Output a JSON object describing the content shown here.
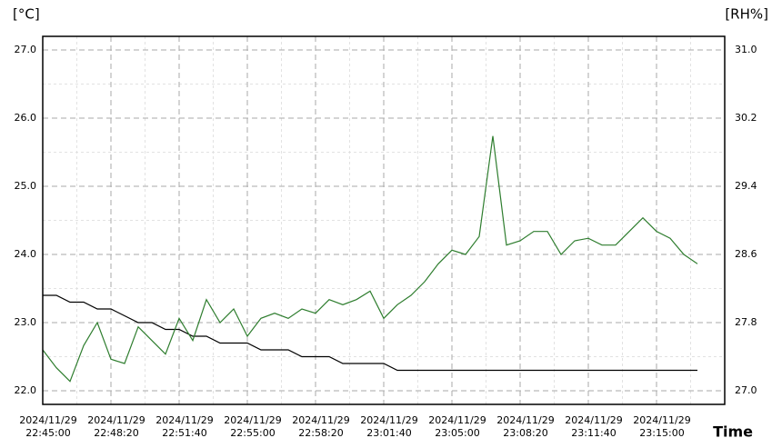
{
  "chart_data": {
    "type": "line",
    "y_label": "[°C]",
    "y2_label": "[RH%]",
    "x_label": "Time",
    "x": [
      "2024/11/29 22:45:00",
      "2024/11/29 22:45:40",
      "2024/11/29 22:46:20",
      "2024/11/29 22:47:00",
      "2024/11/29 22:47:40",
      "2024/11/29 22:48:20",
      "2024/11/29 22:49:00",
      "2024/11/29 22:49:40",
      "2024/11/29 22:50:20",
      "2024/11/29 22:51:00",
      "2024/11/29 22:51:40",
      "2024/11/29 22:52:20",
      "2024/11/29 22:53:00",
      "2024/11/29 22:53:40",
      "2024/11/29 22:54:20",
      "2024/11/29 22:55:00",
      "2024/11/29 22:55:40",
      "2024/11/29 22:56:20",
      "2024/11/29 22:57:00",
      "2024/11/29 22:57:40",
      "2024/11/29 22:58:20",
      "2024/11/29 22:59:00",
      "2024/11/29 22:59:40",
      "2024/11/29 23:00:20",
      "2024/11/29 23:01:00",
      "2024/11/29 23:01:40",
      "2024/11/29 23:02:20",
      "2024/11/29 23:03:00",
      "2024/11/29 23:03:40",
      "2024/11/29 23:04:20",
      "2024/11/29 23:05:00",
      "2024/11/29 23:05:40",
      "2024/11/29 23:06:20",
      "2024/11/29 23:07:00",
      "2024/11/29 23:07:40",
      "2024/11/29 23:08:20",
      "2024/11/29 23:09:00",
      "2024/11/29 23:09:40",
      "2024/11/29 23:10:20",
      "2024/11/29 23:11:00",
      "2024/11/29 23:11:40",
      "2024/11/29 23:12:20",
      "2024/11/29 23:13:00",
      "2024/11/29 23:13:40",
      "2024/11/29 23:14:20",
      "2024/11/29 23:15:00",
      "2024/11/29 23:15:40",
      "2024/11/29 23:16:20",
      "2024/11/29 23:17:00"
    ],
    "series": [
      {
        "color": "#000000",
        "values": [
          23.4,
          23.4,
          23.3,
          23.3,
          23.2,
          23.2,
          23.1,
          23.0,
          23.0,
          22.9,
          22.9,
          22.8,
          22.8,
          22.7,
          22.7,
          22.7,
          22.6,
          22.6,
          22.6,
          22.5,
          22.5,
          22.5,
          22.4,
          22.4,
          22.4,
          22.4,
          22.3,
          22.3,
          22.3,
          22.3,
          22.3,
          22.3,
          22.3,
          22.3,
          22.3,
          22.3,
          22.3,
          22.3,
          22.3,
          22.3,
          22.3,
          22.3,
          22.3,
          22.3,
          22.3,
          22.3,
          22.3,
          22.3,
          22.3
        ]
      },
      {
        "color": "#2e7d2e",
        "axis": "y2",
        "values": [
          27.48,
          27.27,
          27.11,
          27.53,
          27.8,
          27.37,
          27.32,
          27.75,
          27.59,
          27.43,
          27.85,
          27.59,
          28.07,
          27.8,
          27.96,
          27.64,
          27.85,
          27.91,
          27.85,
          27.96,
          27.91,
          28.07,
          28.01,
          28.07,
          28.17,
          27.85,
          28.01,
          28.12,
          28.28,
          28.49,
          28.65,
          28.6,
          28.81,
          29.99,
          28.71,
          28.76,
          28.87,
          28.87,
          28.6,
          28.76,
          28.79,
          28.71,
          28.71,
          28.87,
          29.03,
          28.87,
          28.79,
          28.6,
          28.49
        ]
      }
    ],
    "xlim": [
      "2024/11/29 22:45:00",
      "2024/11/29 23:18:20"
    ],
    "xticks": [
      "2024/11/29 22:45:00",
      "2024/11/29 22:48:20",
      "2024/11/29 22:51:40",
      "2024/11/29 22:55:00",
      "2024/11/29 22:58:20",
      "2024/11/29 23:01:40",
      "2024/11/29 23:05:00",
      "2024/11/29 23:08:20",
      "2024/11/29 23:11:40",
      "2024/11/29 23:15:00"
    ],
    "ylim": [
      21.8,
      27.2
    ],
    "yticks": [
      {
        "value": 22,
        "label": "22.0"
      },
      {
        "value": 23,
        "label": "23.0"
      },
      {
        "value": 24,
        "label": "24.0"
      },
      {
        "value": 25,
        "label": "25.0"
      },
      {
        "value": 26,
        "label": "26.0"
      },
      {
        "value": 27,
        "label": "27.0"
      }
    ],
    "y2lim": [
      26.84,
      31.16
    ],
    "y2ticks": [
      {
        "value": 27,
        "label": "27.0"
      },
      27.8,
      28.6,
      29.4,
      30.2,
      {
        "value": 31,
        "label": "31.0"
      }
    ],
    "grid": true
  }
}
